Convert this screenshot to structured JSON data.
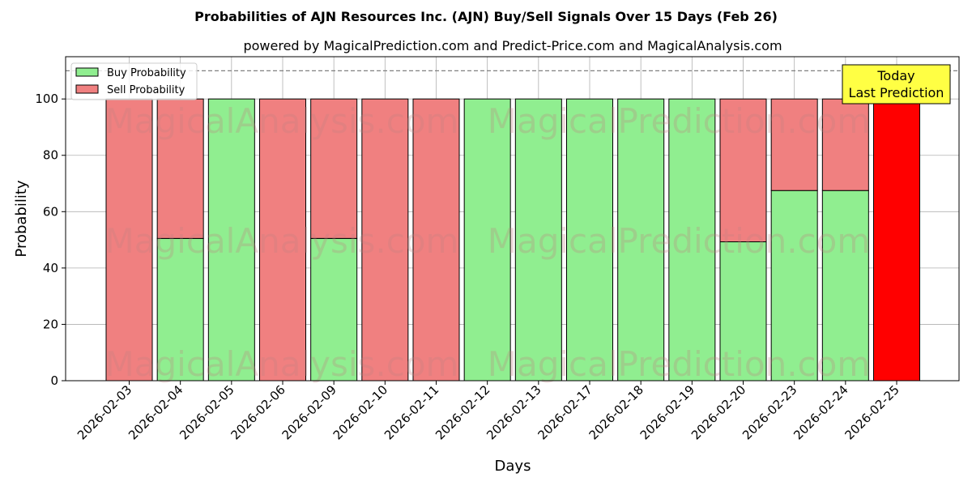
{
  "chart_data": {
    "type": "bar",
    "stacked": true,
    "title": "Probabilities of AJN Resources Inc. (AJN) Buy/Sell Signals Over 15 Days (Feb 26)",
    "subtitle": "powered by MagicalPrediction.com and Predict-Price.com and MagicalAnalysis.com",
    "xlabel": "Days",
    "ylabel": "Probability",
    "ylim": [
      0,
      115
    ],
    "yticks": [
      0,
      20,
      40,
      60,
      80,
      100
    ],
    "reference_line": 110,
    "grid": true,
    "legend_position": "top-left",
    "categories": [
      "2026-02-03",
      "2026-02-04",
      "2026-02-05",
      "2026-02-06",
      "2026-02-09",
      "2026-02-10",
      "2026-02-11",
      "2026-02-12",
      "2026-02-13",
      "2026-02-17",
      "2026-02-18",
      "2026-02-19",
      "2026-02-20",
      "2026-02-23",
      "2026-02-24",
      "2026-02-25"
    ],
    "series": [
      {
        "name": "Buy Probability",
        "color": "#90ee90",
        "values": [
          0,
          50.5,
          100,
          0,
          50.5,
          0,
          0,
          100,
          100,
          100,
          100,
          100,
          49.3,
          67.5,
          67.5,
          0
        ]
      },
      {
        "name": "Sell Probability",
        "color": "#f08080",
        "values": [
          100,
          49.5,
          0,
          100,
          49.5,
          100,
          100,
          0,
          0,
          0,
          0,
          0,
          50.7,
          32.5,
          32.5,
          100
        ]
      }
    ],
    "highlight": {
      "index": 15,
      "color": "#ff0000"
    },
    "annotation": {
      "lines": [
        "Today",
        "Last Prediction"
      ],
      "background": "#ffff44"
    },
    "watermarks": [
      "MagicalAnalysis.com",
      "MagicalPrediction.com"
    ]
  }
}
